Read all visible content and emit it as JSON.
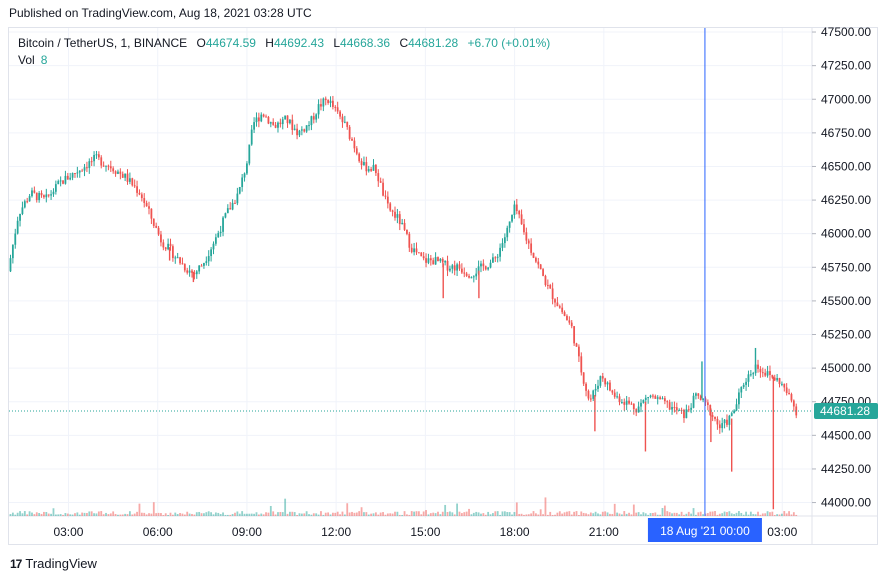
{
  "published": "Published on TradingView.com, Aug 18, 2021 03:28 UTC",
  "legend": {
    "symbol": "Bitcoin / TetherUS, 1, BINANCE",
    "o_label": "O",
    "o_value": "44674.59",
    "h_label": "H",
    "h_value": "44692.43",
    "l_label": "L",
    "l_value": "44668.36",
    "c_label": "C",
    "c_value": "44681.28",
    "change": "+6.70 (+0.01%)",
    "vol_label": "Vol",
    "vol_value": "8"
  },
  "footer": {
    "logo_text": "17",
    "brand": "TradingView"
  },
  "colors": {
    "up": "#26a69a",
    "down": "#ef5350",
    "grid": "#f0f3fa",
    "crosshair": "#2962ff",
    "last_price": "#26a69a"
  },
  "chart_data": {
    "type": "candlestick",
    "ylim": [
      43900,
      47530
    ],
    "y_ticks": [
      "47500.00",
      "47250.00",
      "47000.00",
      "46750.00",
      "46500.00",
      "46250.00",
      "46000.00",
      "45750.00",
      "45500.00",
      "45250.00",
      "45000.00",
      "44750.00",
      "44500.00",
      "44250.00",
      "44000.00"
    ],
    "y_tick_values": [
      47500,
      47250,
      47000,
      46750,
      46500,
      46250,
      46000,
      45750,
      45500,
      45250,
      45000,
      44750,
      44500,
      44250,
      44000
    ],
    "x_ticks": [
      "03:00",
      "06:00",
      "09:00",
      "12:00",
      "15:00",
      "18:00",
      "21:00",
      "03:00"
    ],
    "x_tick_times": [
      3,
      6,
      9,
      12,
      15,
      18,
      21,
      27
    ],
    "x_range": [
      1.0,
      28.0
    ],
    "crosshair_time": 24.4,
    "crosshair_label": "18 Aug '21   00:00",
    "last_price": 44681.28,
    "last_price_label": "44681.28",
    "price_path": [
      [
        1.05,
        45720
      ],
      [
        1.4,
        46150
      ],
      [
        1.8,
        46300
      ],
      [
        2.3,
        46250
      ],
      [
        2.8,
        46380
      ],
      [
        3.4,
        46470
      ],
      [
        4.0,
        46560
      ],
      [
        4.5,
        46500
      ],
      [
        5.0,
        46420
      ],
      [
        5.5,
        46300
      ],
      [
        5.9,
        46100
      ],
      [
        6.2,
        45950
      ],
      [
        6.6,
        45850
      ],
      [
        7.0,
        45750
      ],
      [
        7.3,
        45700
      ],
      [
        7.6,
        45780
      ],
      [
        8.0,
        45950
      ],
      [
        8.4,
        46150
      ],
      [
        8.8,
        46300
      ],
      [
        9.1,
        46550
      ],
      [
        9.3,
        46820
      ],
      [
        9.6,
        46900
      ],
      [
        10.0,
        46800
      ],
      [
        10.4,
        46850
      ],
      [
        10.8,
        46750
      ],
      [
        11.2,
        46820
      ],
      [
        11.5,
        46950
      ],
      [
        11.8,
        47000
      ],
      [
        12.1,
        46900
      ],
      [
        12.4,
        46800
      ],
      [
        12.7,
        46650
      ],
      [
        13.0,
        46500
      ],
      [
        13.4,
        46480
      ],
      [
        13.8,
        46200
      ],
      [
        14.2,
        46100
      ],
      [
        14.6,
        45900
      ],
      [
        15.0,
        45800
      ],
      [
        15.4,
        45800
      ],
      [
        15.8,
        45760
      ],
      [
        16.2,
        45750
      ],
      [
        16.6,
        45700
      ],
      [
        17.0,
        45750
      ],
      [
        17.4,
        45800
      ],
      [
        17.8,
        46000
      ],
      [
        18.1,
        46200
      ],
      [
        18.4,
        46000
      ],
      [
        18.8,
        45800
      ],
      [
        19.2,
        45600
      ],
      [
        19.6,
        45450
      ],
      [
        20.0,
        45300
      ],
      [
        20.3,
        45000
      ],
      [
        20.6,
        44750
      ],
      [
        21.0,
        44950
      ],
      [
        21.4,
        44800
      ],
      [
        21.8,
        44750
      ],
      [
        22.2,
        44700
      ],
      [
        22.6,
        44800
      ],
      [
        23.0,
        44750
      ],
      [
        23.4,
        44700
      ],
      [
        23.8,
        44650
      ],
      [
        24.2,
        44800
      ],
      [
        24.6,
        44700
      ],
      [
        25.0,
        44550
      ],
      [
        25.4,
        44650
      ],
      [
        25.8,
        44900
      ],
      [
        26.2,
        45020
      ],
      [
        26.6,
        44950
      ],
      [
        27.0,
        44900
      ],
      [
        27.4,
        44750
      ],
      [
        27.55,
        44681
      ]
    ],
    "spikes": [
      {
        "t": 6.4,
        "low": 45800
      },
      {
        "t": 7.2,
        "low": 45640
      },
      {
        "t": 15.6,
        "low": 45520
      },
      {
        "t": 16.8,
        "low": 45520
      },
      {
        "t": 20.7,
        "low": 44530
      },
      {
        "t": 22.4,
        "low": 44380
      },
      {
        "t": 24.3,
        "high": 45050
      },
      {
        "t": 24.6,
        "low": 44450
      },
      {
        "t": 25.3,
        "low": 44230
      },
      {
        "t": 26.1,
        "high": 45150
      },
      {
        "t": 26.7,
        "low": 43950
      }
    ]
  }
}
